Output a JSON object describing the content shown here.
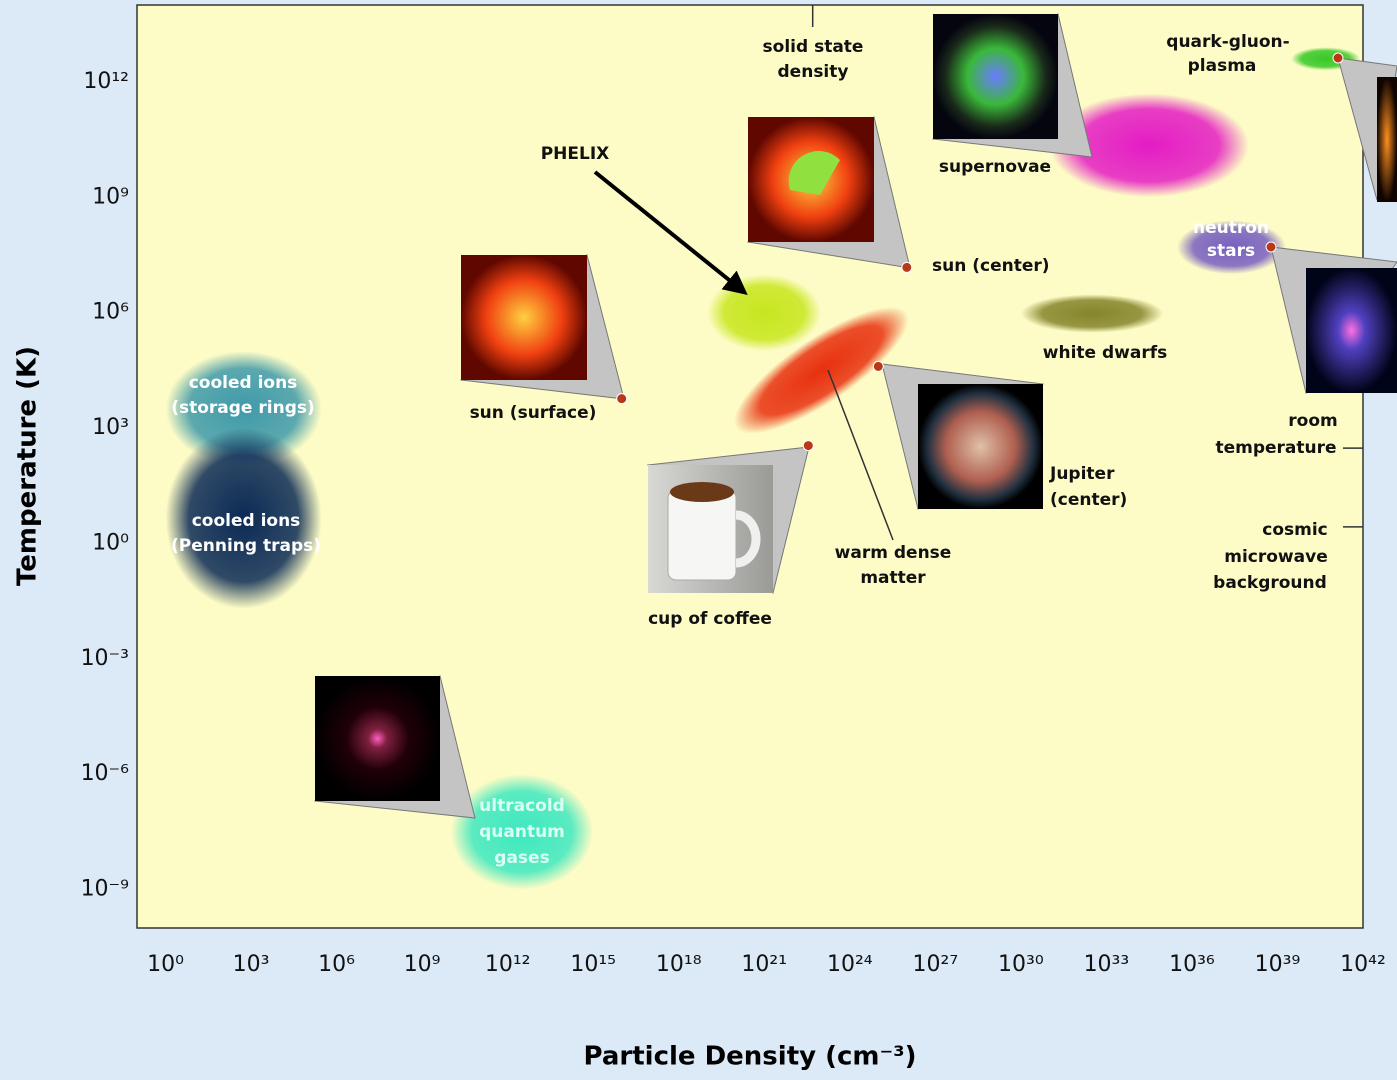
{
  "chart_data": {
    "type": "region",
    "x_label": "Particle Density (cm⁻³)",
    "y_label": "Temperature (K)",
    "xscale": "log",
    "yscale": "log",
    "xlim": [
      0.1,
      1e+42
    ],
    "ylim": [
      1e-10,
      100000000000000.0
    ],
    "xticks": [
      {
        "value": 1,
        "label": "10⁰"
      },
      {
        "value": 1000.0,
        "label": "10³"
      },
      {
        "value": 1000000.0,
        "label": "10⁶"
      },
      {
        "value": 1000000000.0,
        "label": "10⁹"
      },
      {
        "value": 1000000000000.0,
        "label": "10¹²"
      },
      {
        "value": 1000000000000000.0,
        "label": "10¹⁵"
      },
      {
        "value": 1e+18,
        "label": "10¹⁸"
      },
      {
        "value": 1e+21,
        "label": "10²¹"
      },
      {
        "value": 1e+24,
        "label": "10²⁴"
      },
      {
        "value": 1e+27,
        "label": "10²⁷"
      },
      {
        "value": 1e+30,
        "label": "10³⁰"
      },
      {
        "value": 1e+33,
        "label": "10³³"
      },
      {
        "value": 1e+36,
        "label": "10³⁶"
      },
      {
        "value": 1e+39,
        "label": "10³⁹"
      },
      {
        "value": 1e+42,
        "label": "10⁴²"
      }
    ],
    "yticks": [
      {
        "value": 1000000000000.0,
        "label": "10¹²"
      },
      {
        "value": 1000000000.0,
        "label": "10⁹"
      },
      {
        "value": 1000000.0,
        "label": "10⁶"
      },
      {
        "value": 1000.0,
        "label": "10³"
      },
      {
        "value": 1,
        "label": "10⁰"
      },
      {
        "value": 0.001,
        "label": "10⁻³"
      },
      {
        "value": 1e-06,
        "label": "10⁻⁶"
      },
      {
        "value": 1e-09,
        "label": "10⁻⁹"
      }
    ],
    "regions": [
      {
        "label": [
          "cooled ions",
          "(storage rings)"
        ],
        "x": [
          1,
          300000.0
        ],
        "y": [
          100,
          100000.0
        ],
        "color": "#3f9aaa"
      },
      {
        "label": [
          "cooled ions",
          "(Penning traps)"
        ],
        "x": [
          1,
          300000.0
        ],
        "y": [
          0.02,
          1000
        ],
        "color": "#0b2a55"
      },
      {
        "label": [
          "ultracold",
          "quantum",
          "gases"
        ],
        "x": [
          10000000000.0,
          1000000000000000.0
        ],
        "y": [
          1e-09,
          1e-06
        ],
        "color": "#3ee8c0"
      },
      {
        "label": [
          "PHELIX"
        ],
        "x": [
          1e+19,
          1e+23
        ],
        "y": [
          100000.0,
          10000000.0
        ],
        "color": "#c8e61e"
      },
      {
        "label": [
          "warm dense",
          "matter"
        ],
        "x": [
          1e+20,
          1e+26
        ],
        "y": [
          1000,
          1000000.0
        ],
        "color": "#e8300e"
      },
      {
        "label": [
          "white dwarfs"
        ],
        "x": [
          1e+30,
          1e+35
        ],
        "y": [
          300000.0,
          3000000.0
        ],
        "color": "#85852c"
      },
      {
        "label": [
          "supernovae"
        ],
        "x": [
          1e+31,
          1e+38
        ],
        "y": [
          1000000000.0,
          500000000000.0
        ],
        "color": "#e41cc4"
      },
      {
        "label": [
          "neutron",
          "stars"
        ],
        "x": [
          3e+35,
          2e+39
        ],
        "y": [
          10000000.0,
          250000000.0
        ],
        "color": "#7860c0"
      },
      {
        "label": [
          "quark-gluon-",
          "plasma"
        ],
        "x": [
          3e+39,
          8e+41
        ],
        "y": [
          2000000000000.0,
          8000000000000.0
        ],
        "color": "#38c828"
      }
    ],
    "points": [
      {
        "label": [
          "sun (center)"
        ],
        "x": 1e+26,
        "y": 15000000.0
      },
      {
        "label": [
          "sun (surface)"
        ],
        "x": 1e+16,
        "y": 5800
      },
      {
        "label": [
          "cup of coffee"
        ],
        "x": 3.5e+22,
        "y": 350
      },
      {
        "label": [
          "Jupiter",
          "(center)"
        ],
        "x": 1e+25,
        "y": 40000.0
      }
    ],
    "point_color": "#b83818",
    "references": [
      {
        "label": [
          "solid state",
          "density"
        ],
        "x": 5e+22
      },
      {
        "label": [
          "room",
          "temperature"
        ],
        "y": 300
      },
      {
        "label": [
          "cosmic",
          "microwave",
          "background"
        ],
        "y": 2.7
      }
    ]
  }
}
